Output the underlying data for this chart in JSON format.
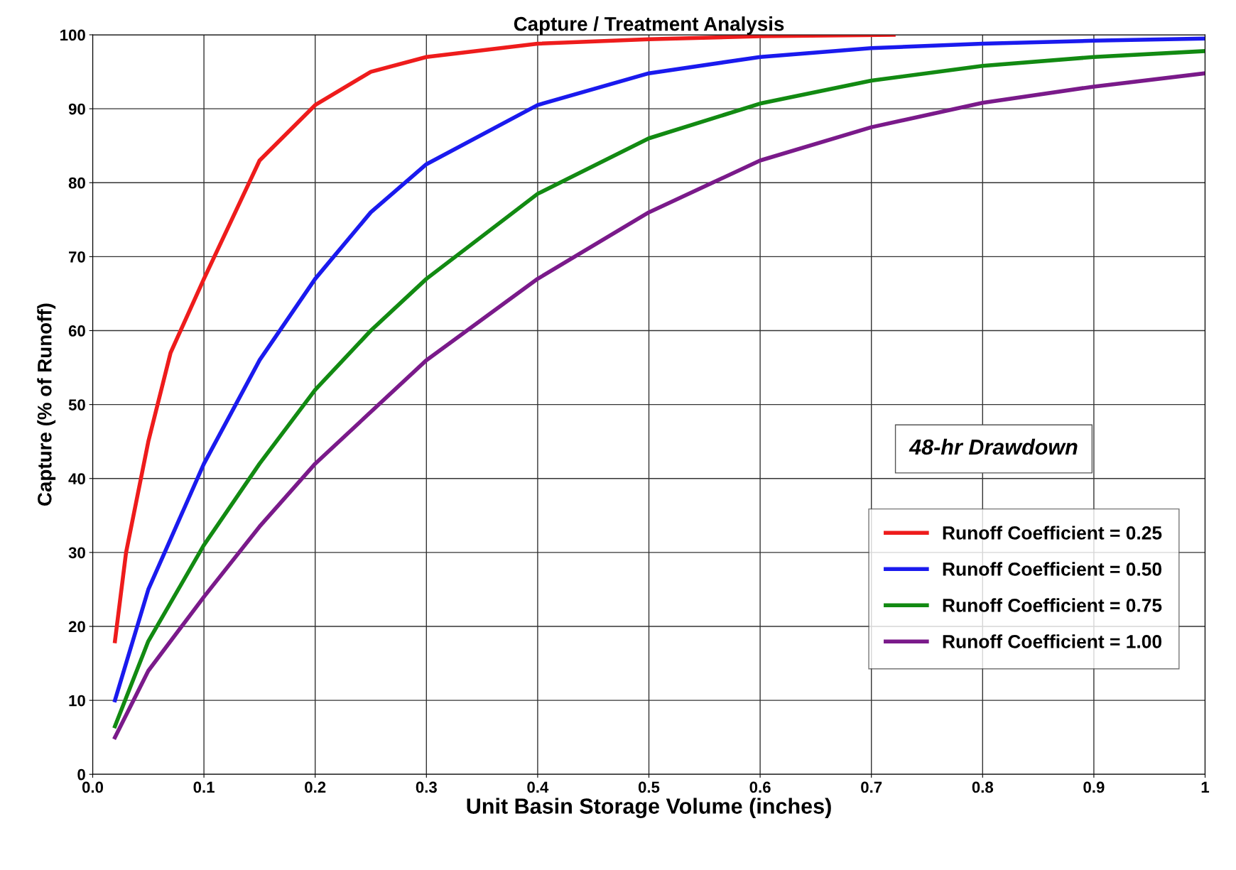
{
  "chart_data": {
    "type": "line",
    "title": "Capture / Treatment Analysis",
    "xlabel": "Unit Basin Storage Volume (inches)",
    "ylabel": "Capture (% of Runoff)",
    "xlim": [
      0,
      1
    ],
    "xticks": [
      {
        "value": 0,
        "label": "0.0"
      },
      0.1,
      0.2,
      0.3,
      0.4,
      0.5,
      0.6,
      0.7,
      0.8,
      0.9,
      {
        "value": 1,
        "label": "1"
      }
    ],
    "ylim": [
      0,
      100
    ],
    "yticks": [
      0,
      10,
      20,
      30,
      40,
      50,
      60,
      70,
      80,
      90,
      100
    ],
    "grid": true,
    "legend": "bottom right",
    "line_style": "solid",
    "marker": "none",
    "annotations": [
      "48-hr Drawdown"
    ],
    "series": [
      {
        "name": "Runoff Coefficient = 0.25",
        "color": "#ee1c1c",
        "x": [
          0.02,
          0.03,
          0.05,
          0.07,
          0.1,
          0.15,
          0.2,
          0.25,
          0.3,
          0.4,
          0.5,
          0.6,
          0.72
        ],
        "values": [
          18,
          30,
          45,
          57,
          67,
          83,
          90.5,
          95,
          97,
          98.8,
          99.4,
          99.8,
          100
        ]
      },
      {
        "name": "Runoff Coefficient = 0.50",
        "color": "#1a1aee",
        "x": [
          0.02,
          0.05,
          0.1,
          0.15,
          0.2,
          0.25,
          0.3,
          0.4,
          0.5,
          0.6,
          0.7,
          0.8,
          0.9,
          1.0
        ],
        "values": [
          10,
          25,
          42,
          56,
          67,
          76,
          82.5,
          90.5,
          94.8,
          97,
          98.2,
          98.8,
          99.2,
          99.5
        ]
      },
      {
        "name": "Runoff Coefficient = 0.75",
        "color": "#128a12",
        "x": [
          0.02,
          0.05,
          0.1,
          0.15,
          0.2,
          0.25,
          0.3,
          0.4,
          0.5,
          0.6,
          0.7,
          0.8,
          0.9,
          1.0
        ],
        "values": [
          6.5,
          18,
          31,
          42,
          52,
          60,
          67,
          78.5,
          86,
          90.7,
          93.8,
          95.8,
          97,
          97.8
        ]
      },
      {
        "name": "Runoff Coefficient = 1.00",
        "color": "#7a1a8a",
        "x": [
          0.02,
          0.05,
          0.1,
          0.15,
          0.2,
          0.3,
          0.4,
          0.5,
          0.6,
          0.7,
          0.8,
          0.9,
          1.0
        ],
        "values": [
          5,
          14,
          24,
          33.5,
          42,
          56,
          67,
          76,
          83,
          87.5,
          90.8,
          93,
          94.8
        ]
      }
    ]
  }
}
